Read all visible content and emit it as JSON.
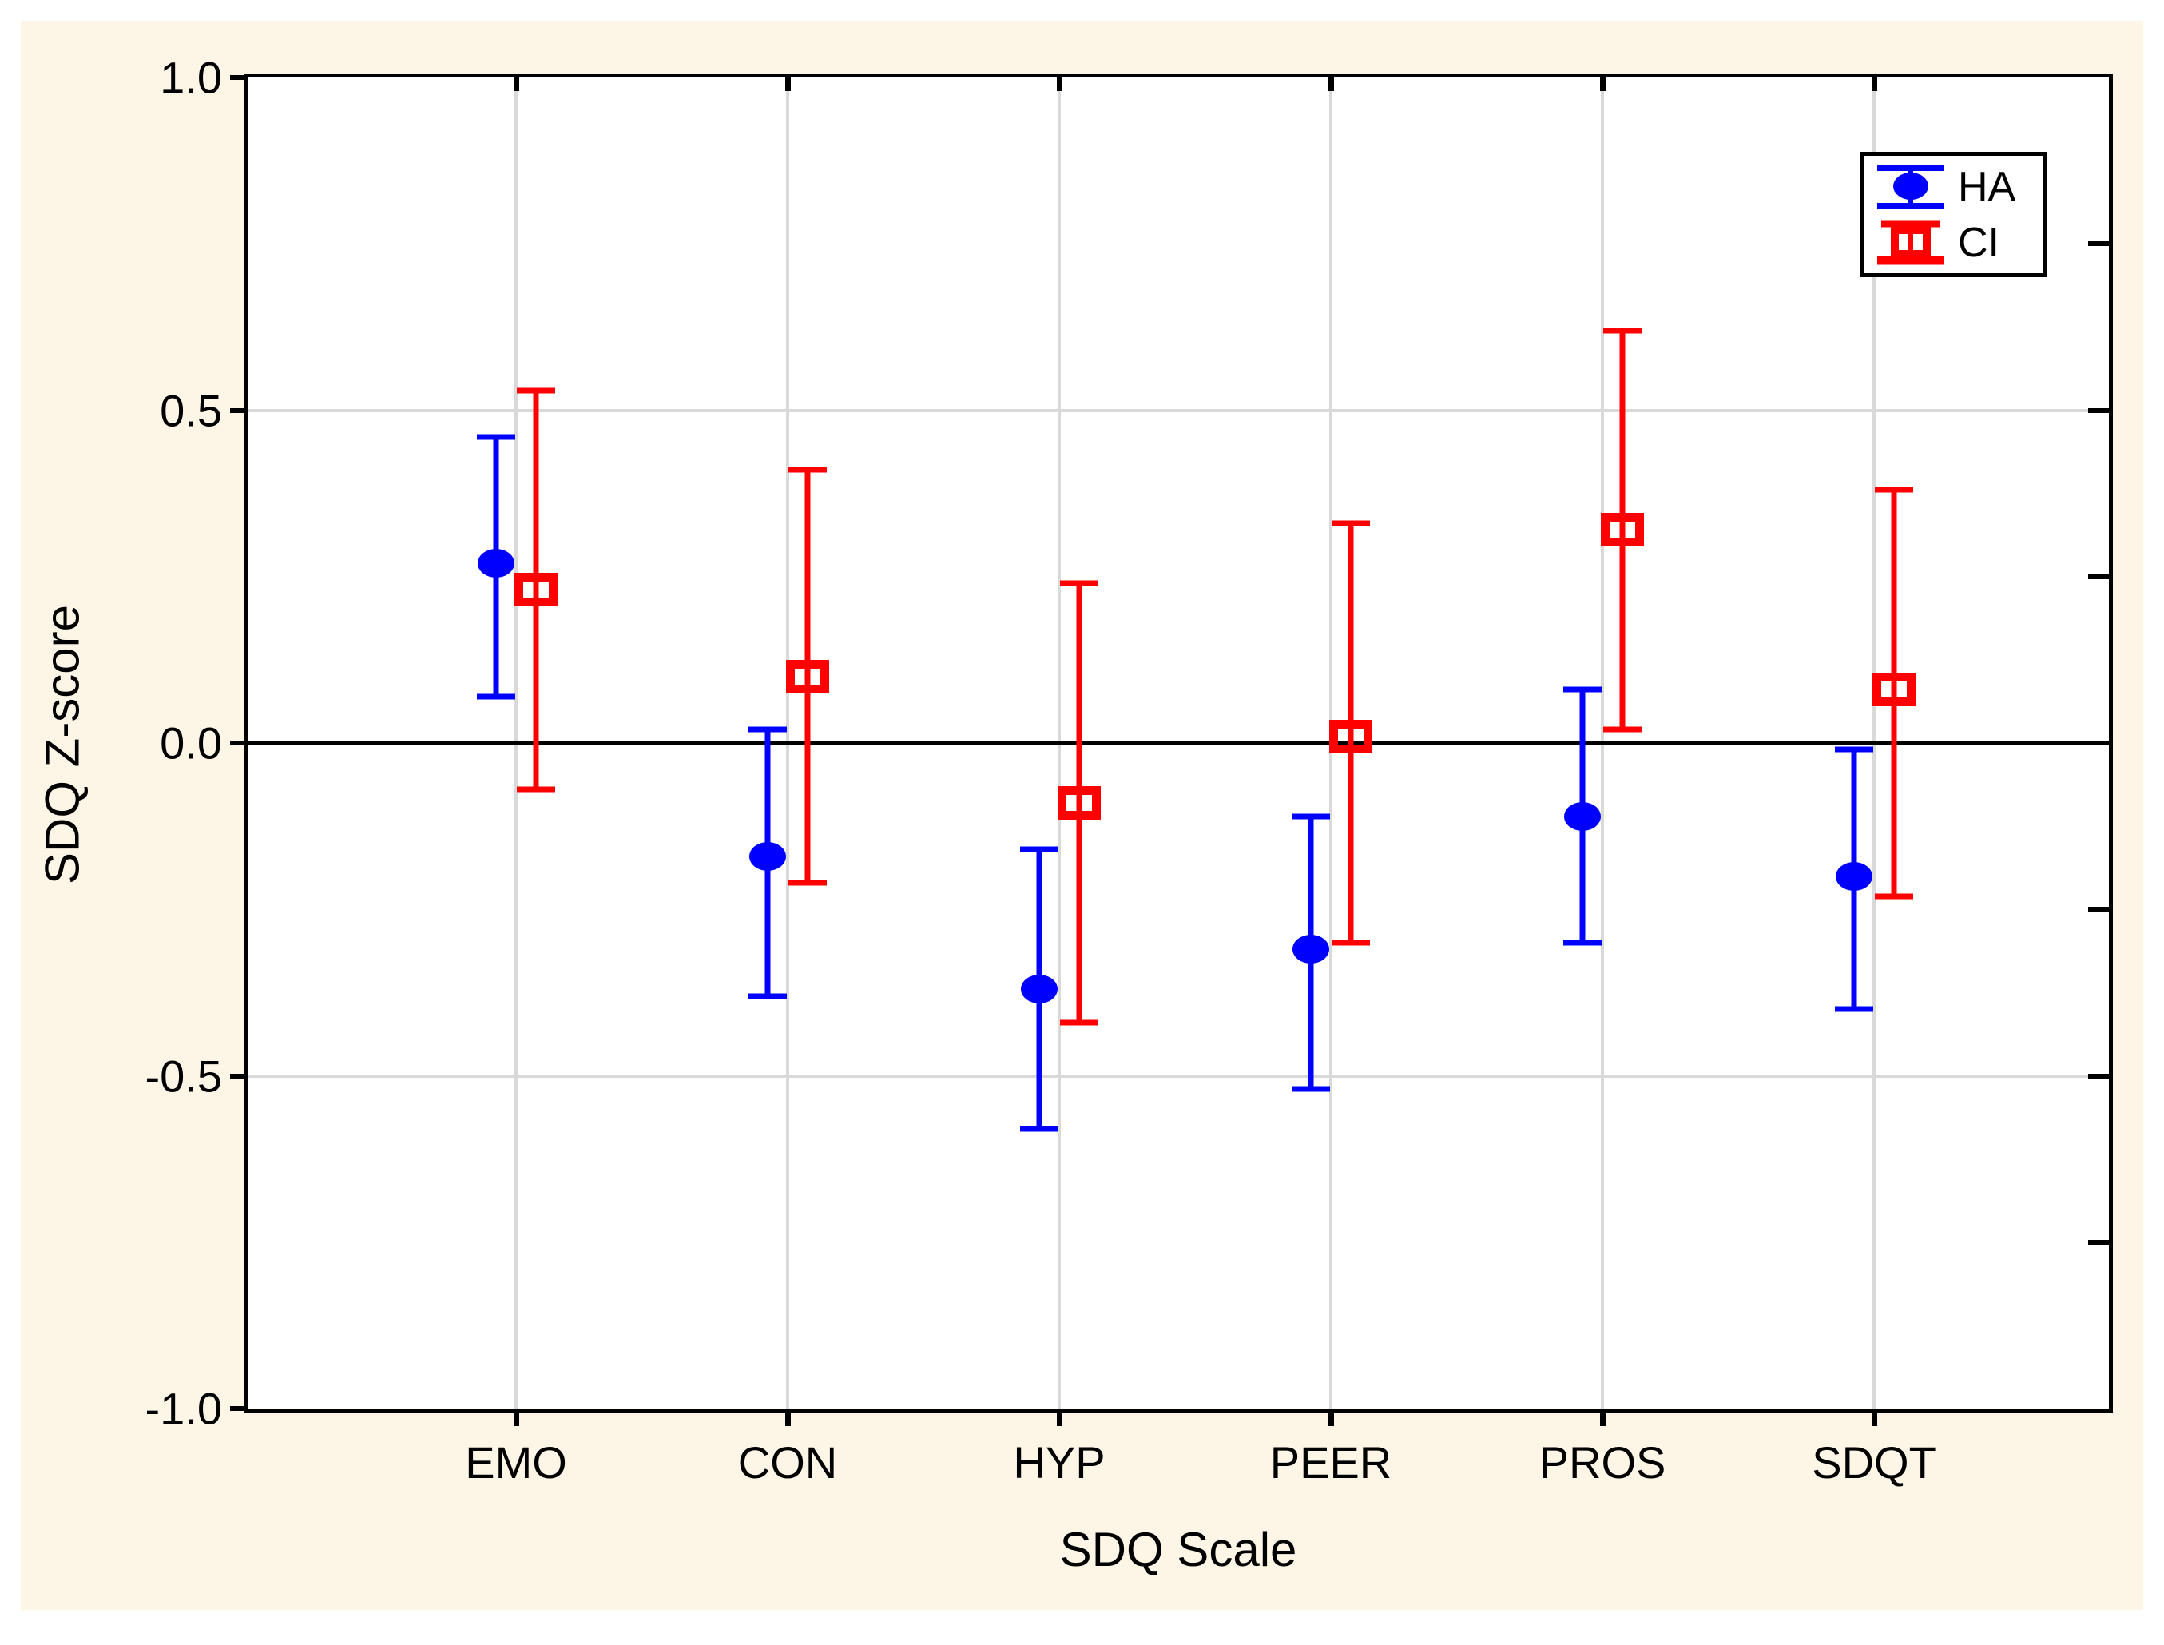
{
  "chart_data": {
    "type": "errorbar-scatter",
    "title": "",
    "xlabel": "SDQ Scale",
    "ylabel": "SDQ Z-score",
    "ylim": [
      -1.0,
      1.0
    ],
    "yticks": [
      1.0,
      0.5,
      0.0,
      -0.5,
      -1.0
    ],
    "ytick_labels": [
      "1.0",
      "0.5",
      "0.0",
      "-0.5",
      "-1.0"
    ],
    "right_axis_minor_ticks": [
      0.75,
      0.5,
      0.25,
      -0.25,
      -0.5,
      -0.75
    ],
    "hgridlines": [
      0.5,
      -0.5
    ],
    "zero_reference_line": 0.0,
    "grid_on": true,
    "categories": [
      "EMO",
      "CON",
      "HYP",
      "PEER",
      "PROS",
      "SDQT"
    ],
    "series": [
      {
        "name": "HA",
        "marker": "filled-circle",
        "color": "#0000FF",
        "values": [
          0.27,
          -0.17,
          -0.37,
          -0.31,
          -0.11,
          -0.2
        ],
        "ci_low": [
          0.07,
          -0.38,
          -0.58,
          -0.52,
          -0.3,
          -0.4
        ],
        "ci_high": [
          0.46,
          0.02,
          -0.16,
          -0.11,
          0.08,
          -0.01
        ]
      },
      {
        "name": "CI",
        "marker": "open-square",
        "color": "#FF0000",
        "values": [
          0.23,
          0.1,
          -0.09,
          0.01,
          0.32,
          0.08
        ],
        "ci_low": [
          -0.07,
          -0.21,
          -0.42,
          -0.3,
          0.02,
          -0.23
        ],
        "ci_high": [
          0.53,
          0.41,
          0.24,
          0.33,
          0.62,
          0.38
        ]
      }
    ],
    "legend": {
      "position": "top-right",
      "entries": [
        {
          "label": "HA",
          "symbol": "blue-filled-circle-errorbar"
        },
        {
          "label": "CI",
          "symbol": "red-open-square-errorbar"
        }
      ]
    },
    "colors": {
      "background": "#FDF5E6",
      "plot_background": "#FFFFFF",
      "gridline": "#D9D9D9",
      "axis": "#000000",
      "series_ha": "#0000FF",
      "series_ci": "#FF0000"
    }
  }
}
